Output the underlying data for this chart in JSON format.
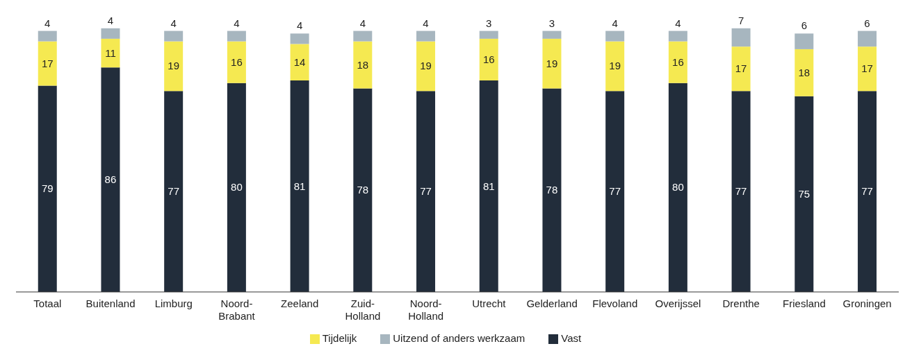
{
  "chart_data": {
    "type": "bar",
    "stacked": true,
    "legend": "bottom",
    "grid": false,
    "data_labels": true,
    "categories": [
      "Totaal",
      "Buitenland",
      "Limburg",
      "Noord-Brabant",
      "Zeeland",
      "Zuid-Holland",
      "Noord-Holland",
      "Utrecht",
      "Gelderland",
      "Flevoland",
      "Overijssel",
      "Drenthe",
      "Friesland",
      "Groningen"
    ],
    "series": [
      {
        "name": "Vast",
        "color": "#222d3b",
        "values": [
          79,
          86,
          77,
          80,
          81,
          78,
          77,
          81,
          78,
          77,
          80,
          77,
          75,
          77
        ]
      },
      {
        "name": "Tijdelijk",
        "color": "#f5e951",
        "values": [
          17,
          11,
          19,
          16,
          14,
          18,
          19,
          16,
          19,
          19,
          16,
          17,
          18,
          17
        ]
      },
      {
        "name": "Uitzend of anders werkzaam",
        "color": "#a7b6bf",
        "values": [
          4,
          4,
          4,
          4,
          4,
          4,
          4,
          3,
          3,
          4,
          4,
          7,
          6,
          6
        ]
      }
    ]
  }
}
